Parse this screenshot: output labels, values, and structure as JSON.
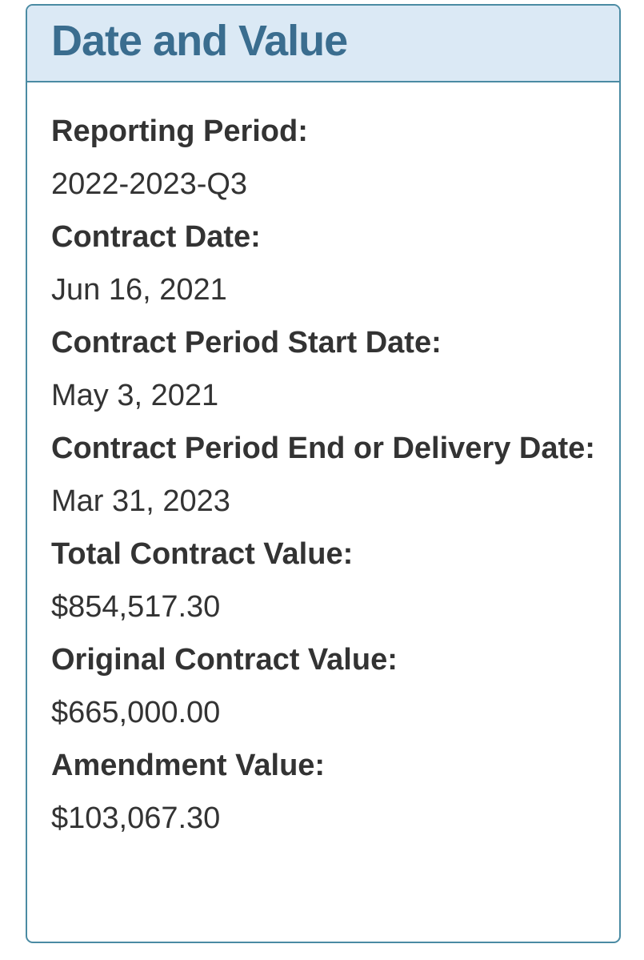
{
  "panel": {
    "title": "Date and Value",
    "fields": [
      {
        "label": "Reporting Period:",
        "value": "2022-2023-Q3"
      },
      {
        "label": "Contract Date:",
        "value": "Jun 16, 2021"
      },
      {
        "label": "Contract Period Start Date:",
        "value": "May 3, 2021"
      },
      {
        "label": "Contract Period End or Delivery Date:",
        "value": "Mar 31, 2023"
      },
      {
        "label": "Total Contract Value:",
        "value": "$854,517.30"
      },
      {
        "label": "Original Contract Value:",
        "value": "$665,000.00"
      },
      {
        "label": "Amendment Value:",
        "value": "$103,067.30"
      }
    ]
  },
  "colors": {
    "border": "#4b8ba3",
    "header_background": "#dbe9f5",
    "header_text": "#3a6d8f",
    "body_text": "#333333",
    "page_background": "#ffffff"
  }
}
